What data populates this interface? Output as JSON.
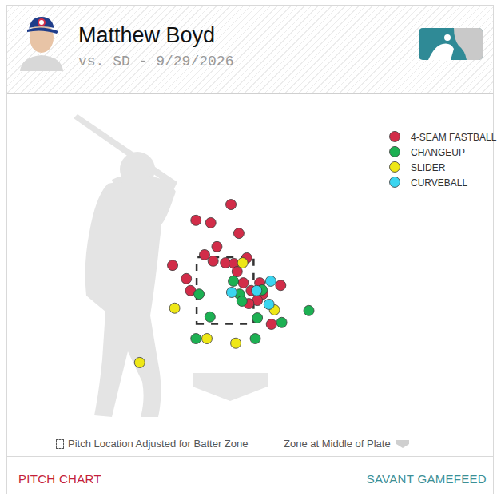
{
  "chart_data": {
    "type": "scatter",
    "title": "Matthew Boyd",
    "subtitle": "vs. SD - 9/29/2026",
    "xlim": [
      -6.56,
      7.69
    ],
    "ylim": [
      -2.14,
      8.14
    ],
    "tick_labels": false,
    "grid": false,
    "legend": "top right",
    "strike_zone": {
      "x": [
        -0.83,
        0.83
      ],
      "y": [
        1.6,
        3.5
      ]
    },
    "series": [
      {
        "name": "4-SEAM FASTBALL",
        "color": "#d22d49",
        "x": [
          0.17,
          -0.85,
          -0.42,
          0.4,
          -0.24,
          -0.6,
          0.63,
          -1.53,
          -0.35,
          0.01,
          0.26,
          0.35,
          -1.13,
          0.53,
          1.01,
          1.62,
          -1.01,
          0.76,
          1.1,
          0.94,
          0.69,
          1.35
        ],
        "values": [
          5.0,
          4.55,
          4.48,
          4.18,
          3.8,
          3.57,
          3.48,
          3.27,
          3.39,
          3.34,
          3.32,
          3.09,
          2.89,
          2.77,
          2.77,
          2.7,
          2.55,
          2.55,
          2.45,
          2.27,
          2.18,
          1.59
        ]
      },
      {
        "name": "CHANGEUP",
        "color": "#1db053",
        "x": [
          0.24,
          -0.76,
          0.42,
          1.08,
          0.49,
          -0.44,
          0.94,
          1.65,
          2.44,
          -0.85,
          0.88
        ],
        "values": [
          2.82,
          2.45,
          2.45,
          2.57,
          2.25,
          1.8,
          1.77,
          1.64,
          1.98,
          1.18,
          1.18
        ]
      },
      {
        "name": "SLIDER",
        "color": "#eee716",
        "x": [
          0.51,
          -1.47,
          1.44,
          -0.53,
          0.31,
          -2.49
        ],
        "values": [
          3.34,
          2.05,
          2.0,
          1.18,
          1.05,
          0.5
        ]
      },
      {
        "name": "CURVEBALL",
        "color": "#3bd5f0",
        "x": [
          1.33,
          0.19,
          0.92,
          1.28
        ],
        "values": [
          2.82,
          2.5,
          2.55,
          2.16
        ]
      }
    ],
    "annotations": [
      "Pitch Location Adjusted for Batter Zone",
      "Zone at Middle of Plate"
    ],
    "links": [
      "PITCH CHART",
      "SAVANT GAMEFEED"
    ]
  }
}
